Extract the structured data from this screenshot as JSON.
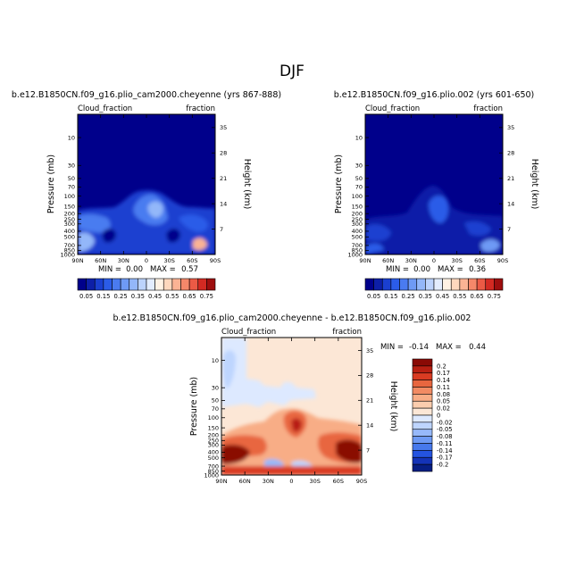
{
  "figure": {
    "season": "DJF"
  },
  "colors": {
    "abs_scale": [
      "#00008B",
      "#0D1FA8",
      "#1A3FD0",
      "#2B5CE8",
      "#4A7BF0",
      "#6E9AF5",
      "#93B7F9",
      "#BCD3FC",
      "#E3EDFE",
      "#FFF2E4",
      "#FDD7BD",
      "#FBB394",
      "#F5886A",
      "#EB5A45",
      "#D32A22",
      "#9E0E0E"
    ],
    "diff_scale": [
      "#071E84",
      "#1433B8",
      "#2453E0",
      "#4779EC",
      "#6E9AF4",
      "#97B9FA",
      "#BED5FE",
      "#DDE9FF",
      "#FCE7D6",
      "#FBCDAE",
      "#F8AD86",
      "#F28B63",
      "#E8663F",
      "#D93B22",
      "#B81F12",
      "#8A0A05"
    ]
  },
  "chart_data": [
    {
      "type": "heatmap",
      "title": "b.e12.B1850CN.f09_g16.plio_cam2000.cheyenne (yrs 867-888)",
      "left_label": "Cloud_fraction",
      "right_label": "fraction",
      "ylabel": "Pressure (mb)",
      "ylabel_right": "Height (km)",
      "x_ticks": [
        "90N",
        "60N",
        "30N",
        "0",
        "30S",
        "60S",
        "90S"
      ],
      "y_ticks": [
        "1000",
        "850",
        "700",
        "500",
        "400",
        "300",
        "250",
        "200",
        "150",
        "100",
        "70",
        "50",
        "30",
        "10"
      ],
      "y_right_ticks": [
        "7",
        "14",
        "21",
        "28",
        "35"
      ],
      "min_label": "MIN =",
      "min_value": "0.00",
      "max_label": "MAX =",
      "max_value": "0.57",
      "colorbar_labels": [
        "0.05",
        "0.15",
        "0.25",
        "0.35",
        "0.45",
        "0.55",
        "0.65",
        "0.75"
      ]
    },
    {
      "type": "heatmap",
      "title": "b.e12.B1850CN.f09_g16.plio.002 (yrs 601-650)",
      "left_label": "Cloud_fraction",
      "right_label": "fraction",
      "ylabel": "Pressure (mb)",
      "ylabel_right": "Height (km)",
      "x_ticks": [
        "90N",
        "60N",
        "30N",
        "0",
        "30S",
        "60S",
        "90S"
      ],
      "y_ticks": [
        "1000",
        "850",
        "700",
        "500",
        "400",
        "300",
        "250",
        "200",
        "150",
        "100",
        "70",
        "50",
        "30",
        "10"
      ],
      "y_right_ticks": [
        "7",
        "14",
        "21",
        "28",
        "35"
      ],
      "min_label": "MIN =",
      "min_value": "0.00",
      "max_label": "MAX =",
      "max_value": "0.36",
      "colorbar_labels": [
        "0.05",
        "0.15",
        "0.25",
        "0.35",
        "0.45",
        "0.55",
        "0.65",
        "0.75"
      ]
    },
    {
      "type": "heatmap",
      "title": "b.e12.B1850CN.f09_g16.plio_cam2000.cheyenne - b.e12.B1850CN.f09_g16.plio.002",
      "left_label": "Cloud_fraction",
      "right_label": "fraction",
      "ylabel": "Pressure (mb)",
      "ylabel_right": "Height (km)",
      "x_ticks": [
        "90N",
        "60N",
        "30N",
        "0",
        "30S",
        "60S",
        "90S"
      ],
      "y_ticks": [
        "1000",
        "850",
        "700",
        "500",
        "400",
        "300",
        "250",
        "200",
        "150",
        "100",
        "70",
        "50",
        "30",
        "10"
      ],
      "y_right_ticks": [
        "7",
        "14",
        "21",
        "28",
        "35"
      ],
      "min_label": "MIN =",
      "min_value": "-0.14",
      "max_label": "MAX =",
      "max_value": "0.44",
      "colorbar_labels": [
        "0.2",
        "0.17",
        "0.14",
        "0.11",
        "0.08",
        "0.05",
        "0.02",
        "0",
        "-0.02",
        "-0.05",
        "-0.08",
        "-0.11",
        "-0.14",
        "-0.17",
        "-0.2"
      ]
    }
  ]
}
